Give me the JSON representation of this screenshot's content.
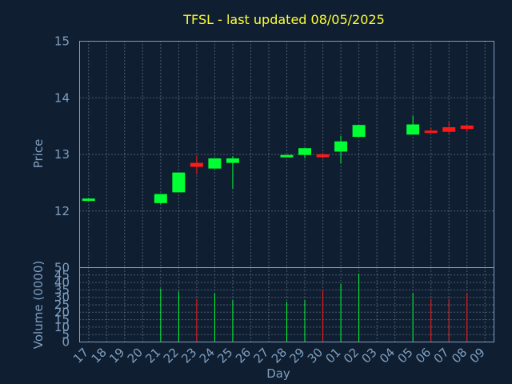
{
  "chart_data": {
    "type": "candlestick",
    "title": "TFSL - last updated 08/05/2025",
    "xlabel": "Day",
    "ylabel_price": "Price",
    "ylabel_volume": "Volume (0000)",
    "grid": true,
    "colors": {
      "up": "#00ff33",
      "down": "#ff1a1a",
      "background": "#0f1e30",
      "text": "#7f9fc0",
      "title": "#ffff33"
    },
    "x_ticks": [
      "17",
      "18",
      "19",
      "20",
      "21",
      "22",
      "23",
      "24",
      "25",
      "26",
      "27",
      "28",
      "29",
      "30",
      "01",
      "02",
      "03",
      "04",
      "05",
      "06",
      "07",
      "08",
      "09"
    ],
    "price_ylim": [
      11,
      15
    ],
    "price_ticks": [
      "12",
      "13",
      "14",
      "15"
    ],
    "volume_ylim": [
      0,
      50
    ],
    "volume_ticks": [
      "0",
      "5",
      "10",
      "15",
      "20",
      "25",
      "30",
      "35",
      "40",
      "45",
      "50"
    ],
    "candles": [
      {
        "day": "17",
        "open": 12.18,
        "high": 12.23,
        "low": 12.18,
        "close": 12.22,
        "volume": 0
      },
      {
        "day": "21",
        "open": 12.14,
        "high": 12.3,
        "low": 12.12,
        "close": 12.3,
        "volume": 36
      },
      {
        "day": "22",
        "open": 12.33,
        "high": 12.68,
        "low": 12.33,
        "close": 12.68,
        "volume": 34
      },
      {
        "day": "23",
        "open": 12.85,
        "high": 12.98,
        "low": 12.65,
        "close": 12.78,
        "volume": 29
      },
      {
        "day": "24",
        "open": 12.75,
        "high": 12.93,
        "low": 12.75,
        "close": 12.93,
        "volume": 33
      },
      {
        "day": "25",
        "open": 12.85,
        "high": 12.97,
        "low": 12.4,
        "close": 12.93,
        "volume": 28
      },
      {
        "day": "28",
        "open": 12.96,
        "high": 12.99,
        "low": 12.95,
        "close": 12.99,
        "volume": 27
      },
      {
        "day": "29",
        "open": 12.99,
        "high": 13.11,
        "low": 12.93,
        "close": 13.11,
        "volume": 28
      },
      {
        "day": "30",
        "open": 13.0,
        "high": 13.03,
        "low": 12.93,
        "close": 12.95,
        "volume": 35
      },
      {
        "day": "01",
        "open": 13.05,
        "high": 13.33,
        "low": 12.84,
        "close": 13.23,
        "volume": 39
      },
      {
        "day": "02",
        "open": 13.31,
        "high": 13.52,
        "low": 13.31,
        "close": 13.52,
        "volume": 46
      },
      {
        "day": "05",
        "open": 13.35,
        "high": 13.68,
        "low": 13.35,
        "close": 13.53,
        "volume": 33
      },
      {
        "day": "06",
        "open": 13.42,
        "high": 13.47,
        "low": 13.38,
        "close": 13.38,
        "volume": 29
      },
      {
        "day": "07",
        "open": 13.48,
        "high": 13.58,
        "low": 13.37,
        "close": 13.4,
        "volume": 29
      },
      {
        "day": "08",
        "open": 13.51,
        "high": 13.51,
        "low": 13.41,
        "close": 13.45,
        "volume": 33
      }
    ]
  }
}
